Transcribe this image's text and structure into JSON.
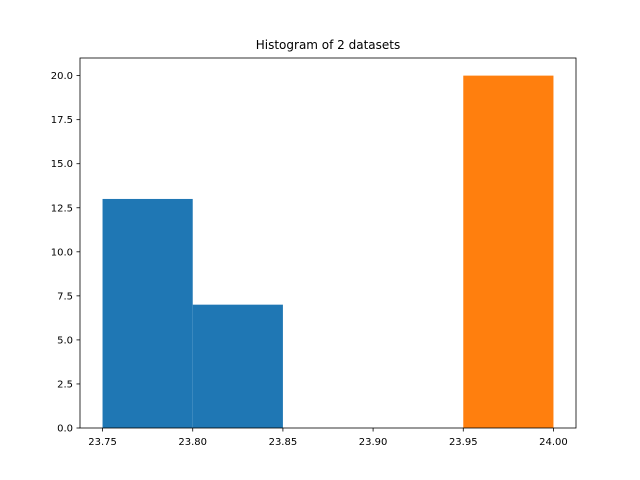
{
  "chart_data": {
    "type": "bar",
    "title": "Histogram of 2 datasets",
    "xlabel": "",
    "ylabel": "",
    "xlim": [
      23.7375,
      24.0125
    ],
    "ylim": [
      0,
      21
    ],
    "xticks": [
      23.75,
      23.8,
      23.85,
      23.9,
      23.95,
      24.0
    ],
    "xtick_labels": [
      "23.75",
      "23.80",
      "23.85",
      "23.90",
      "23.95",
      "24.00"
    ],
    "yticks": [
      0,
      2.5,
      5,
      7.5,
      10,
      12.5,
      15,
      17.5,
      20
    ],
    "ytick_labels": [
      "0.0",
      "2.5",
      "5.0",
      "7.5",
      "10.0",
      "12.5",
      "15.0",
      "17.5",
      "20.0"
    ],
    "grid": false,
    "series": [
      {
        "color": "#1f77b4",
        "bins": [
          {
            "x0": 23.75,
            "x1": 23.8,
            "value": 13
          },
          {
            "x0": 23.8,
            "x1": 23.85,
            "value": 7
          }
        ]
      },
      {
        "color": "#ff7f0e",
        "bins": [
          {
            "x0": 23.95,
            "x1": 24.0,
            "value": 20
          }
        ]
      }
    ]
  }
}
